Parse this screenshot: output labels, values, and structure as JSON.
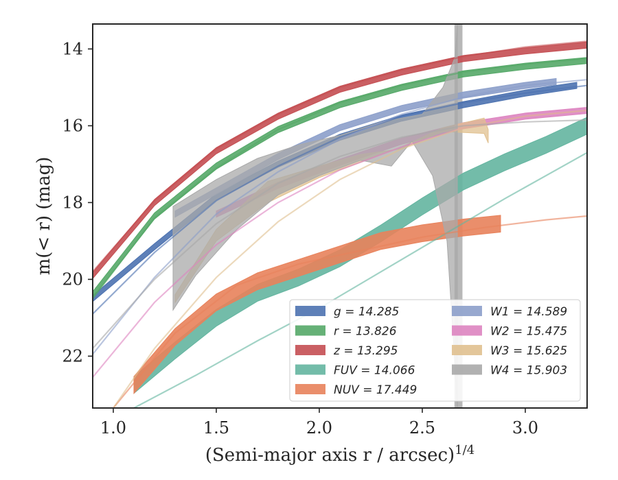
{
  "chart_data": {
    "type": "line",
    "xlabel": "(Semi-major axis r / arcsec)",
    "xlabel_italic_symbol": "r",
    "xlabel_exponent": "1/4",
    "ylabel": "m(< r) (mag)",
    "xlim": [
      0.9,
      3.3
    ],
    "ylim": [
      23.35,
      13.35
    ],
    "y_inverted": true,
    "x_ticks": [
      1.0,
      1.5,
      2.0,
      2.5,
      3.0
    ],
    "x_tick_labels": [
      "1.0",
      "1.5",
      "2.0",
      "2.5",
      "3.0"
    ],
    "y_ticks": [
      14,
      16,
      18,
      20,
      22
    ],
    "y_tick_labels": [
      "14",
      "16",
      "18",
      "20",
      "22"
    ],
    "grid": false,
    "legend_position": "lower-right",
    "legend_columns": 2,
    "series": [
      {
        "name": "g",
        "label": "g = 14.285",
        "color": "#4c72b0",
        "thin_line": {
          "x": [
            0.9,
            1.2,
            1.5,
            1.8,
            2.1,
            2.4,
            2.7,
            3.0,
            3.3
          ],
          "y": [
            20.9,
            19.3,
            17.95,
            17.05,
            16.3,
            15.75,
            15.4,
            15.15,
            14.95
          ]
        },
        "band": {
          "x": [
            0.9,
            1.2,
            1.5,
            1.8,
            2.1,
            2.4,
            2.7,
            3.0,
            3.25
          ],
          "y": [
            20.5,
            19.15,
            17.85,
            17.0,
            16.3,
            15.8,
            15.45,
            15.15,
            14.95
          ],
          "width": 0.08
        }
      },
      {
        "name": "r",
        "label": "r = 13.826",
        "color": "#55a868",
        "thin_line": {
          "x": [
            0.9,
            1.2,
            1.5,
            1.8,
            2.1,
            2.4,
            2.7,
            3.0,
            3.3
          ],
          "y": [
            20.5,
            18.4,
            17.1,
            16.1,
            15.4,
            14.95,
            14.6,
            14.4,
            14.25
          ]
        },
        "band": {
          "x": [
            0.9,
            1.2,
            1.5,
            1.8,
            2.1,
            2.4,
            2.7,
            3.0,
            3.3
          ],
          "y": [
            20.4,
            18.35,
            17.05,
            16.1,
            15.45,
            15.0,
            14.65,
            14.45,
            14.3
          ],
          "width": 0.08
        }
      },
      {
        "name": "z",
        "label": "z = 13.295",
        "color": "#c44e52",
        "thin_line": {
          "x": [
            0.9,
            1.2,
            1.5,
            1.8,
            2.1,
            2.4,
            2.7,
            3.0,
            3.3
          ],
          "y": [
            19.8,
            17.95,
            16.6,
            15.7,
            15.0,
            14.55,
            14.2,
            13.95,
            13.8
          ]
        },
        "band": {
          "x": [
            0.9,
            1.2,
            1.5,
            1.8,
            2.1,
            2.4,
            2.7,
            3.0,
            3.3
          ],
          "y": [
            19.9,
            18.0,
            16.65,
            15.75,
            15.05,
            14.6,
            14.25,
            14.05,
            13.9
          ],
          "width": 0.08
        }
      },
      {
        "name": "FUV",
        "label": "FUV = 14.066",
        "color": "#64b5a0",
        "thin_line": {
          "x": [
            1.1,
            1.4,
            1.7,
            2.0,
            2.3,
            2.6,
            2.9,
            3.3
          ],
          "y": [
            23.35,
            22.5,
            21.6,
            20.75,
            19.8,
            18.85,
            17.9,
            16.7
          ]
        },
        "band": {
          "x": [
            1.1,
            1.3,
            1.5,
            1.7,
            1.9,
            2.1,
            2.3,
            2.5,
            2.7,
            2.9,
            3.1,
            3.3
          ],
          "y": [
            22.75,
            21.85,
            21.0,
            20.35,
            19.95,
            19.45,
            18.8,
            18.1,
            17.45,
            16.95,
            16.5,
            16.0
          ],
          "width": 0.22
        }
      },
      {
        "name": "NUV",
        "label": "NUV = 17.449",
        "color": "#e8825b",
        "thin_line": {
          "x": [
            1.0,
            1.3,
            1.6,
            1.9,
            2.2,
            2.5,
            2.8,
            3.1,
            3.3
          ],
          "y": [
            23.35,
            21.4,
            20.15,
            19.6,
            19.25,
            18.9,
            18.65,
            18.45,
            18.35
          ]
        },
        "band": {
          "x": [
            1.1,
            1.3,
            1.5,
            1.7,
            1.9,
            2.1,
            2.3,
            2.5,
            2.7,
            2.88
          ],
          "y": [
            22.75,
            21.5,
            20.6,
            20.05,
            19.7,
            19.35,
            19.0,
            18.8,
            18.65,
            18.55
          ],
          "width": 0.22
        }
      },
      {
        "name": "W1",
        "label": "W1 = 14.589",
        "color": "#8c9fca",
        "thin_line": {
          "x": [
            0.9,
            1.2,
            1.5,
            1.8,
            2.1,
            2.4,
            2.7,
            3.0,
            3.3
          ],
          "y": [
            21.95,
            19.95,
            18.3,
            17.2,
            16.35,
            15.7,
            15.25,
            14.95,
            14.8
          ]
        },
        "band": {
          "x": [
            1.3,
            1.5,
            1.8,
            2.1,
            2.4,
            2.7,
            3.0,
            3.15
          ],
          "y": [
            18.3,
            17.7,
            16.8,
            16.05,
            15.55,
            15.2,
            14.95,
            14.85
          ],
          "width": 0.08
        }
      },
      {
        "name": "W2",
        "label": "W2 = 15.475",
        "color": "#dd84c0",
        "thin_line": {
          "x": [
            0.9,
            1.2,
            1.5,
            1.8,
            2.1,
            2.4,
            2.7,
            3.0,
            3.3
          ],
          "y": [
            22.55,
            20.6,
            19.1,
            18.0,
            17.15,
            16.55,
            16.05,
            15.75,
            15.6
          ]
        },
        "band": {
          "x": [
            1.5,
            1.8,
            2.1,
            2.4,
            2.7,
            3.0,
            3.3
          ],
          "y": [
            18.3,
            17.55,
            16.95,
            16.4,
            16.0,
            15.75,
            15.6
          ],
          "width": 0.08
        }
      },
      {
        "name": "W3",
        "label": "W3 = 15.625",
        "color": "#e0c08f",
        "thin_line": {
          "x": [
            1.0,
            1.2,
            1.5,
            1.8,
            2.1,
            2.4,
            2.7,
            3.0,
            3.3
          ],
          "y": [
            23.35,
            21.8,
            19.95,
            18.5,
            17.4,
            16.6,
            16.05,
            15.75,
            15.6
          ]
        },
        "band_upper": {
          "x": [
            1.3,
            1.5,
            1.75,
            2.0,
            2.2,
            2.4,
            2.6,
            2.8,
            2.82
          ],
          "y": [
            20.6,
            19.0,
            18.0,
            17.35,
            16.95,
            16.55,
            16.05,
            15.8,
            16.1
          ]
        },
        "band_lower": {
          "x": [
            1.3,
            1.5,
            1.75,
            2.0,
            2.2,
            2.4,
            2.6,
            2.8,
            2.82
          ],
          "y": [
            20.4,
            18.7,
            17.45,
            17.05,
            16.75,
            16.6,
            16.15,
            16.2,
            16.45
          ]
        }
      },
      {
        "name": "W4",
        "label": "W4 = 15.903",
        "color": "#a9a9a9",
        "thin_line": {
          "x": [
            0.9,
            1.2,
            1.5,
            1.8,
            2.1,
            2.4,
            2.7,
            3.0,
            3.3
          ],
          "y": [
            21.8,
            20.0,
            18.55,
            17.5,
            16.8,
            16.3,
            16.0,
            15.9,
            15.85
          ]
        },
        "band_upper": {
          "x": [
            1.29,
            1.5,
            1.7,
            1.9,
            2.1,
            2.3,
            2.5,
            2.6,
            2.63,
            2.66,
            2.67
          ],
          "y": [
            18.1,
            17.4,
            16.85,
            16.5,
            16.25,
            15.9,
            15.7,
            15.0,
            14.6,
            14.2,
            13.35
          ]
        },
        "band_lower": {
          "x": [
            1.29,
            1.4,
            1.6,
            1.8,
            2.0,
            2.2,
            2.35,
            2.45,
            2.55,
            2.62,
            2.65,
            2.67
          ],
          "y": [
            20.8,
            19.9,
            18.7,
            17.8,
            17.3,
            16.9,
            17.05,
            16.4,
            17.3,
            19.0,
            21.5,
            23.35
          ]
        }
      }
    ],
    "vertical_band": {
      "x": [
        2.656,
        2.695
      ],
      "color": "#b0b0b0"
    }
  }
}
